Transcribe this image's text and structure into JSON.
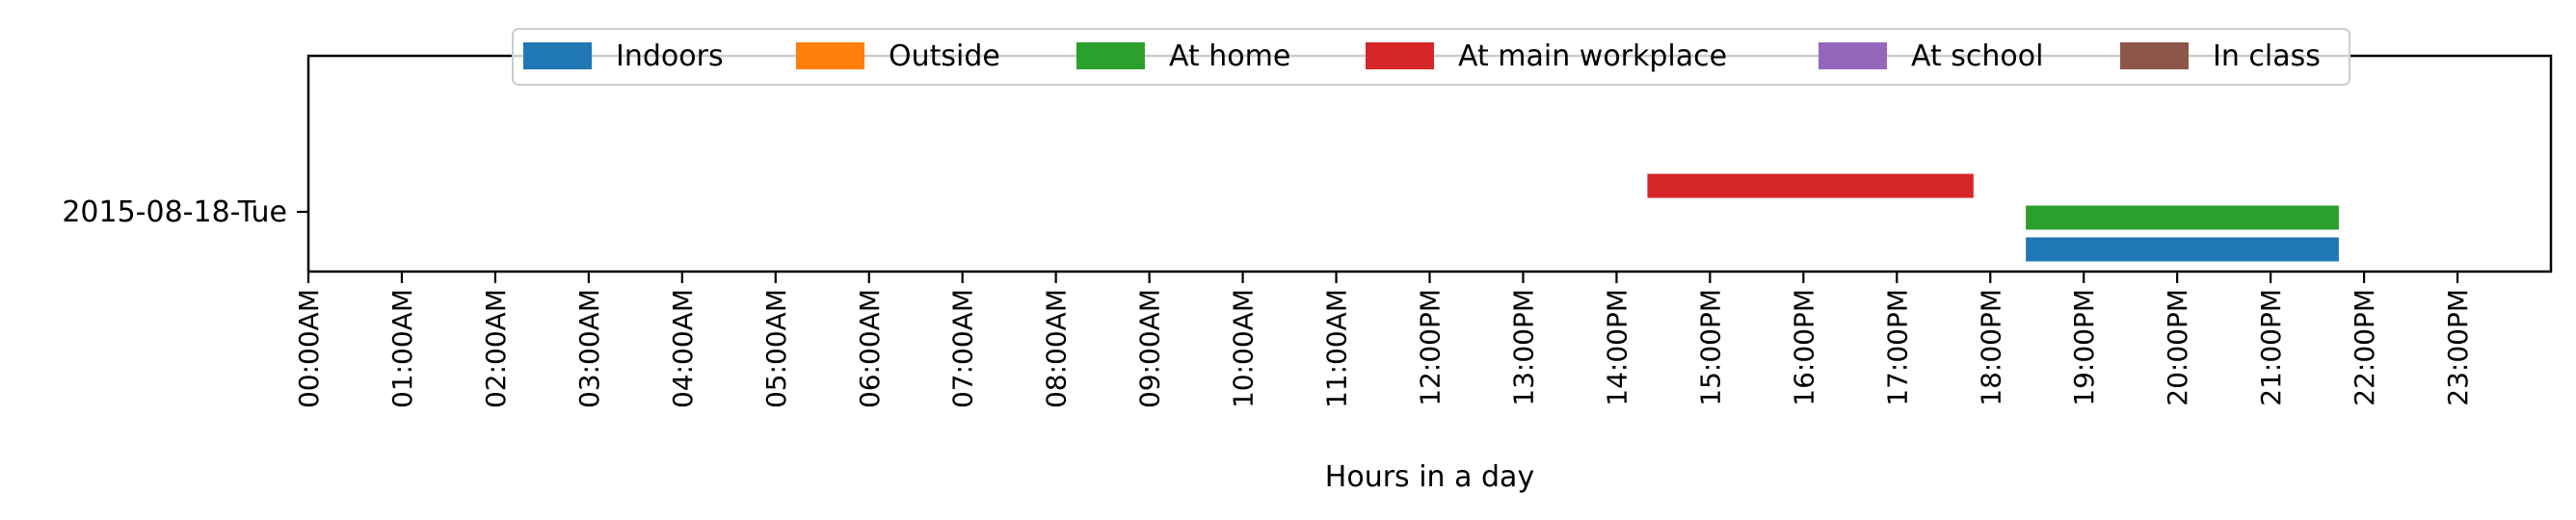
{
  "chart_data": {
    "type": "timeline",
    "xlabel": "Hours in a day",
    "xlim_hours": [
      0,
      24
    ],
    "x_tick_labels": [
      "00:00AM",
      "01:00AM",
      "02:00AM",
      "03:00AM",
      "04:00AM",
      "05:00AM",
      "06:00AM",
      "07:00AM",
      "08:00AM",
      "09:00AM",
      "10:00AM",
      "11:00AM",
      "12:00PM",
      "13:00PM",
      "14:00PM",
      "15:00PM",
      "16:00PM",
      "17:00PM",
      "18:00PM",
      "19:00PM",
      "20:00PM",
      "21:00PM",
      "22:00PM",
      "23:00PM"
    ],
    "y_categories": [
      "2015-08-18-Tue"
    ],
    "legend_location": "upper center",
    "series": [
      {
        "name": "Indoors",
        "color": "#1f77b4",
        "segments": [
          [
            18.38,
            21.73
          ]
        ]
      },
      {
        "name": "Outside",
        "color": "#ff7f0e",
        "segments": []
      },
      {
        "name": "At home",
        "color": "#2ca02c",
        "segments": [
          [
            18.38,
            21.73
          ]
        ]
      },
      {
        "name": "At main workplace",
        "color": "#d62728",
        "segments": [
          [
            14.33,
            17.82
          ]
        ]
      },
      {
        "name": "At school",
        "color": "#9467bd",
        "segments": []
      },
      {
        "name": "In class",
        "color": "#8c564b",
        "segments": []
      }
    ]
  }
}
